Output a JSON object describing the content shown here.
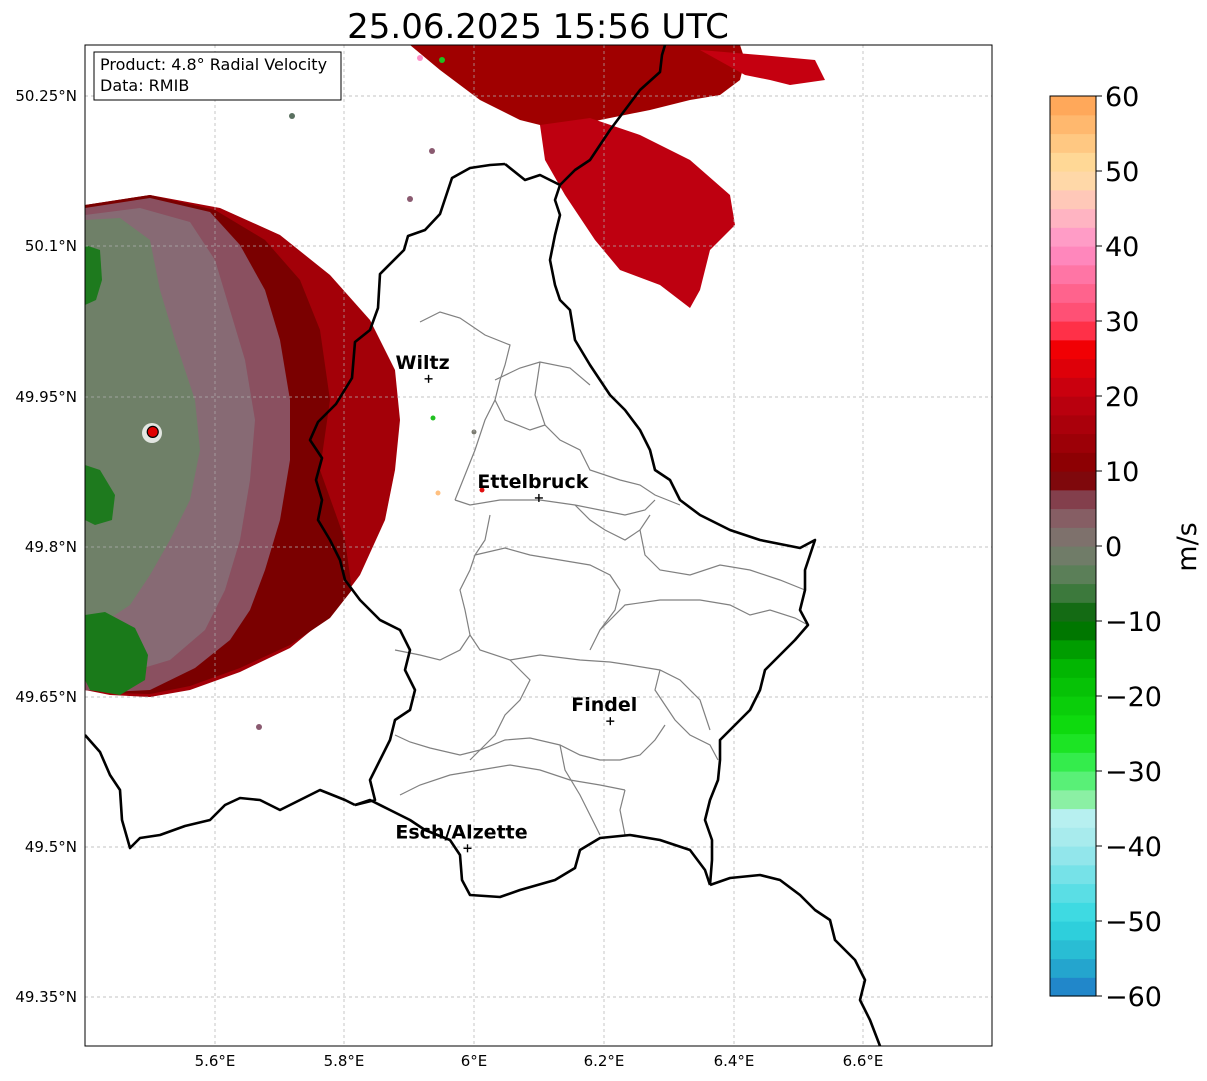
{
  "title": "25.06.2025 15:56 UTC",
  "info_box": {
    "product": "Product: 4.8° Radial Velocity",
    "source": "Data: RMIB"
  },
  "map": {
    "lon_ticks": [
      "5.6°E",
      "5.8°E",
      "6°E",
      "6.2°E",
      "6.4°E",
      "6.6°E"
    ],
    "lat_ticks": [
      "50.25°N",
      "50.1°N",
      "49.95°N",
      "49.8°N",
      "49.65°N",
      "49.5°N",
      "49.35°N"
    ],
    "cities": [
      {
        "name": "Wiltz",
        "lon": 5.93,
        "lat": 49.968
      },
      {
        "name": "Ettelbruck",
        "lon": 6.1,
        "lat": 49.849
      },
      {
        "name": "Findel",
        "lon": 6.21,
        "lat": 49.626
      },
      {
        "name": "Esch/Alzette",
        "lon": 5.99,
        "lat": 49.499
      }
    ],
    "radar_site": {
      "lon": 5.505,
      "lat": 49.915
    }
  },
  "colorbar": {
    "unit": "m/s",
    "ticks": [
      "60",
      "50",
      "40",
      "30",
      "20",
      "10",
      "0",
      "−10",
      "−20",
      "−30",
      "−40",
      "−50",
      "−60"
    ],
    "range": [
      -60,
      60
    ],
    "stops": [
      {
        "v": -60,
        "c": "#1f78c8"
      },
      {
        "v": -55,
        "c": "#26b4d0"
      },
      {
        "v": -50,
        "c": "#30d8e0"
      },
      {
        "v": -40,
        "c": "#a0e8ec"
      },
      {
        "v": -36,
        "c": "#b8f0f0"
      },
      {
        "v": -34,
        "c": "#90f0a8"
      },
      {
        "v": -30,
        "c": "#40f060"
      },
      {
        "v": -25,
        "c": "#10e010"
      },
      {
        "v": -15,
        "c": "#00b000"
      },
      {
        "v": -10,
        "c": "#006400"
      },
      {
        "v": -5,
        "c": "#508050"
      },
      {
        "v": 0,
        "c": "#7a7a70"
      },
      {
        "v": 5,
        "c": "#8a5560"
      },
      {
        "v": 8,
        "c": "#7a2030"
      },
      {
        "v": 9,
        "c": "#800000"
      },
      {
        "v": 20,
        "c": "#c00010"
      },
      {
        "v": 28,
        "c": "#ff0000"
      },
      {
        "v": 29,
        "c": "#ff4060"
      },
      {
        "v": 40,
        "c": "#ff90c8"
      },
      {
        "v": 45,
        "c": "#ffc0c0"
      },
      {
        "v": 50,
        "c": "#ffe0a0"
      },
      {
        "v": 60,
        "c": "#ffa050"
      }
    ]
  }
}
